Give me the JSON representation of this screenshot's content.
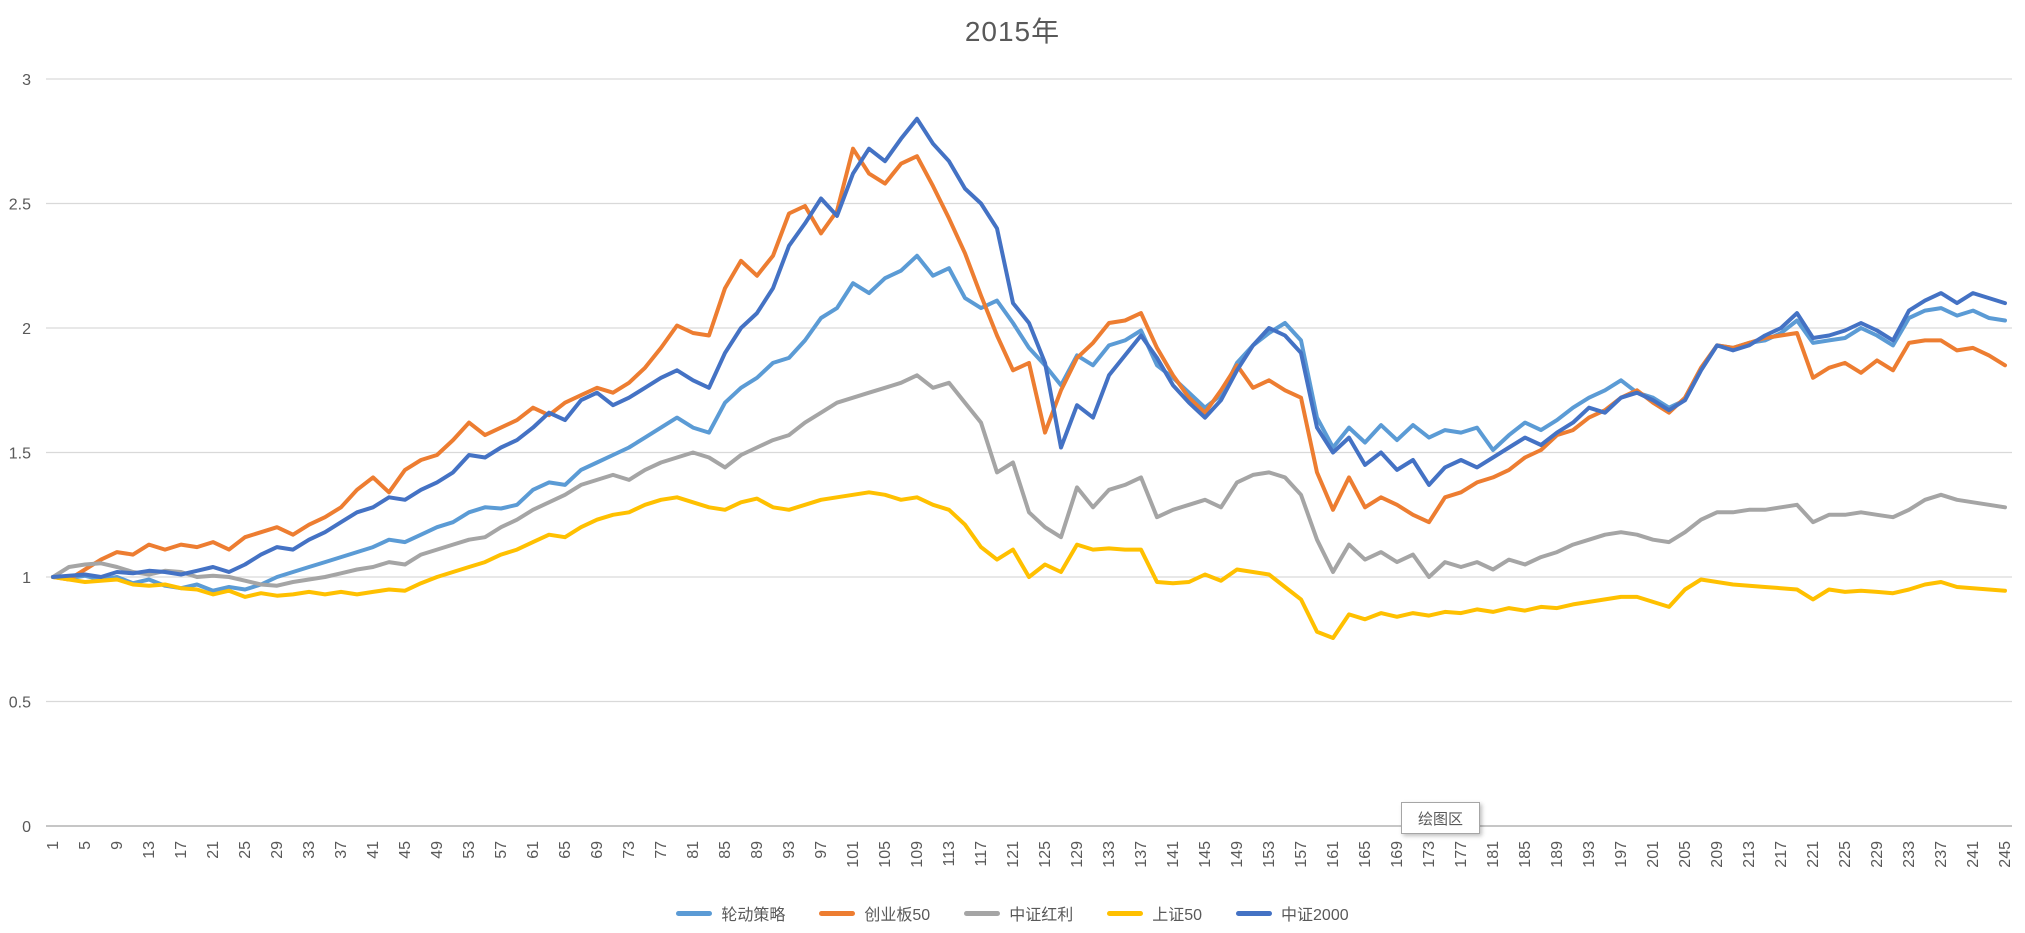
{
  "title": "2015年",
  "tooltip": {
    "label": "绘图区"
  },
  "colors": {
    "grid": "#d9d9d9",
    "axis_line": "#c6c6c6",
    "axis_text": "#595959",
    "title_text": "#595959"
  },
  "legend": [
    {
      "label": "轮动策略",
      "color": "#5B9BD5"
    },
    {
      "label": "创业板50",
      "color": "#ED7D31"
    },
    {
      "label": "中证红利",
      "color": "#A5A5A5"
    },
    {
      "label": "上证50",
      "color": "#FFC000"
    },
    {
      "label": "中证2000",
      "color": "#4472C4"
    }
  ],
  "chart_data": {
    "type": "line",
    "title": "2015年",
    "xlabel": "",
    "ylabel": "",
    "x_description": "trading day index 1-245, sampled every 2 days",
    "x_start_day": 1,
    "x_day_step": 2,
    "x_tick_labels": [
      1,
      5,
      9,
      13,
      17,
      21,
      25,
      29,
      33,
      37,
      41,
      45,
      49,
      53,
      57,
      61,
      65,
      69,
      73,
      77,
      81,
      85,
      89,
      93,
      97,
      101,
      105,
      109,
      113,
      117,
      121,
      125,
      129,
      133,
      137,
      141,
      145,
      149,
      153,
      157,
      161,
      165,
      169,
      173,
      177,
      181,
      185,
      189,
      193,
      197,
      201,
      205,
      209,
      213,
      217,
      221,
      225,
      229,
      233,
      237,
      241,
      245
    ],
    "y_ticks": [
      0,
      0.5,
      1,
      1.5,
      2,
      2.5,
      3
    ],
    "ylim": [
      0,
      3
    ],
    "xlim": [
      1,
      245
    ],
    "grid": "horizontal",
    "legend_position": "bottom",
    "series": [
      {
        "name": "轮动策略",
        "color": "#5B9BD5",
        "values": [
          1.0,
          0.995,
          1.005,
          0.99,
          1.0,
          0.975,
          0.99,
          0.965,
          0.955,
          0.97,
          0.945,
          0.96,
          0.95,
          0.97,
          1.0,
          1.02,
          1.04,
          1.06,
          1.08,
          1.1,
          1.12,
          1.15,
          1.14,
          1.17,
          1.2,
          1.22,
          1.26,
          1.28,
          1.275,
          1.29,
          1.35,
          1.38,
          1.37,
          1.43,
          1.46,
          1.49,
          1.52,
          1.56,
          1.6,
          1.64,
          1.6,
          1.58,
          1.7,
          1.76,
          1.8,
          1.86,
          1.88,
          1.95,
          2.04,
          2.08,
          2.18,
          2.14,
          2.2,
          2.23,
          2.29,
          2.21,
          2.24,
          2.12,
          2.08,
          2.11,
          2.02,
          1.92,
          1.85,
          1.77,
          1.89,
          1.85,
          1.93,
          1.95,
          1.99,
          1.85,
          1.8,
          1.74,
          1.68,
          1.73,
          1.86,
          1.93,
          1.98,
          2.02,
          1.95,
          1.64,
          1.52,
          1.6,
          1.54,
          1.61,
          1.55,
          1.61,
          1.56,
          1.59,
          1.58,
          1.6,
          1.51,
          1.57,
          1.62,
          1.59,
          1.63,
          1.68,
          1.72,
          1.75,
          1.79,
          1.74,
          1.72,
          1.68,
          1.71,
          1.83,
          1.93,
          1.92,
          1.94,
          1.95,
          1.98,
          2.03,
          1.94,
          1.95,
          1.96,
          2.0,
          1.97,
          1.93,
          2.04,
          2.07,
          2.08,
          2.05,
          2.07,
          2.04,
          2.03
        ]
      },
      {
        "name": "创业板50",
        "color": "#ED7D31",
        "values": [
          1.0,
          0.99,
          1.03,
          1.07,
          1.1,
          1.09,
          1.13,
          1.11,
          1.13,
          1.12,
          1.14,
          1.11,
          1.16,
          1.18,
          1.2,
          1.17,
          1.21,
          1.24,
          1.28,
          1.35,
          1.4,
          1.34,
          1.43,
          1.47,
          1.49,
          1.55,
          1.62,
          1.57,
          1.6,
          1.63,
          1.68,
          1.65,
          1.7,
          1.73,
          1.76,
          1.74,
          1.78,
          1.84,
          1.92,
          2.01,
          1.98,
          1.97,
          2.16,
          2.27,
          2.21,
          2.29,
          2.46,
          2.49,
          2.38,
          2.47,
          2.72,
          2.62,
          2.58,
          2.66,
          2.69,
          2.57,
          2.44,
          2.3,
          2.13,
          1.97,
          1.83,
          1.86,
          1.58,
          1.75,
          1.88,
          1.94,
          2.02,
          2.03,
          2.06,
          1.92,
          1.81,
          1.72,
          1.66,
          1.75,
          1.85,
          1.76,
          1.79,
          1.75,
          1.72,
          1.42,
          1.27,
          1.4,
          1.28,
          1.32,
          1.29,
          1.25,
          1.22,
          1.32,
          1.34,
          1.38,
          1.4,
          1.43,
          1.48,
          1.51,
          1.57,
          1.59,
          1.64,
          1.67,
          1.72,
          1.75,
          1.7,
          1.66,
          1.72,
          1.84,
          1.93,
          1.92,
          1.94,
          1.96,
          1.97,
          1.98,
          1.8,
          1.84,
          1.86,
          1.82,
          1.87,
          1.83,
          1.94,
          1.95,
          1.95,
          1.91,
          1.92,
          1.89,
          1.85
        ]
      },
      {
        "name": "中证红利",
        "color": "#A5A5A5",
        "values": [
          1.0,
          1.04,
          1.05,
          1.055,
          1.04,
          1.02,
          1.01,
          1.025,
          1.02,
          1.0,
          1.005,
          1.0,
          0.985,
          0.97,
          0.965,
          0.98,
          0.99,
          1.0,
          1.015,
          1.03,
          1.04,
          1.06,
          1.05,
          1.09,
          1.11,
          1.13,
          1.15,
          1.16,
          1.2,
          1.23,
          1.27,
          1.3,
          1.33,
          1.37,
          1.39,
          1.41,
          1.39,
          1.43,
          1.46,
          1.48,
          1.5,
          1.48,
          1.44,
          1.49,
          1.52,
          1.55,
          1.57,
          1.62,
          1.66,
          1.7,
          1.72,
          1.74,
          1.76,
          1.78,
          1.81,
          1.76,
          1.78,
          1.7,
          1.62,
          1.42,
          1.46,
          1.26,
          1.2,
          1.16,
          1.36,
          1.28,
          1.35,
          1.37,
          1.4,
          1.24,
          1.27,
          1.29,
          1.31,
          1.28,
          1.38,
          1.41,
          1.42,
          1.4,
          1.33,
          1.15,
          1.02,
          1.13,
          1.07,
          1.1,
          1.06,
          1.09,
          1.0,
          1.06,
          1.04,
          1.06,
          1.03,
          1.07,
          1.05,
          1.08,
          1.1,
          1.13,
          1.15,
          1.17,
          1.18,
          1.17,
          1.15,
          1.14,
          1.18,
          1.23,
          1.26,
          1.26,
          1.27,
          1.27,
          1.28,
          1.29,
          1.22,
          1.25,
          1.25,
          1.26,
          1.25,
          1.24,
          1.27,
          1.31,
          1.33,
          1.31,
          1.3,
          1.29,
          1.28
        ]
      },
      {
        "name": "上证50",
        "color": "#FFC000",
        "values": [
          1.0,
          0.99,
          0.98,
          0.985,
          0.99,
          0.97,
          0.965,
          0.97,
          0.955,
          0.95,
          0.93,
          0.945,
          0.92,
          0.935,
          0.925,
          0.93,
          0.94,
          0.93,
          0.94,
          0.93,
          0.94,
          0.95,
          0.945,
          0.975,
          1.0,
          1.02,
          1.04,
          1.06,
          1.09,
          1.11,
          1.14,
          1.17,
          1.16,
          1.2,
          1.23,
          1.25,
          1.26,
          1.29,
          1.31,
          1.32,
          1.3,
          1.28,
          1.27,
          1.3,
          1.315,
          1.28,
          1.27,
          1.29,
          1.31,
          1.32,
          1.33,
          1.34,
          1.33,
          1.31,
          1.32,
          1.29,
          1.27,
          1.21,
          1.12,
          1.07,
          1.11,
          1.0,
          1.05,
          1.02,
          1.13,
          1.11,
          1.115,
          1.11,
          1.11,
          0.98,
          0.975,
          0.98,
          1.01,
          0.985,
          1.03,
          1.02,
          1.01,
          0.96,
          0.91,
          0.78,
          0.755,
          0.85,
          0.83,
          0.855,
          0.84,
          0.855,
          0.845,
          0.86,
          0.855,
          0.87,
          0.86,
          0.875,
          0.865,
          0.88,
          0.875,
          0.89,
          0.9,
          0.91,
          0.92,
          0.92,
          0.9,
          0.88,
          0.95,
          0.99,
          0.98,
          0.97,
          0.965,
          0.96,
          0.955,
          0.95,
          0.91,
          0.95,
          0.94,
          0.945,
          0.94,
          0.935,
          0.95,
          0.97,
          0.98,
          0.96,
          0.955,
          0.95,
          0.945
        ]
      },
      {
        "name": "中证2000",
        "color": "#4472C4",
        "values": [
          1.0,
          1.005,
          1.01,
          1.0,
          1.02,
          1.015,
          1.025,
          1.02,
          1.01,
          1.025,
          1.04,
          1.02,
          1.05,
          1.09,
          1.12,
          1.11,
          1.15,
          1.18,
          1.22,
          1.26,
          1.28,
          1.32,
          1.31,
          1.35,
          1.38,
          1.42,
          1.49,
          1.48,
          1.52,
          1.55,
          1.6,
          1.66,
          1.63,
          1.71,
          1.74,
          1.69,
          1.72,
          1.76,
          1.8,
          1.83,
          1.79,
          1.76,
          1.9,
          2.0,
          2.06,
          2.16,
          2.33,
          2.42,
          2.52,
          2.45,
          2.62,
          2.72,
          2.67,
          2.76,
          2.84,
          2.74,
          2.67,
          2.56,
          2.5,
          2.4,
          2.1,
          2.02,
          1.86,
          1.52,
          1.69,
          1.64,
          1.81,
          1.89,
          1.97,
          1.88,
          1.77,
          1.7,
          1.64,
          1.71,
          1.83,
          1.93,
          2.0,
          1.97,
          1.9,
          1.6,
          1.5,
          1.56,
          1.45,
          1.5,
          1.43,
          1.47,
          1.37,
          1.44,
          1.47,
          1.44,
          1.48,
          1.52,
          1.56,
          1.53,
          1.58,
          1.62,
          1.68,
          1.66,
          1.72,
          1.74,
          1.71,
          1.67,
          1.71,
          1.83,
          1.93,
          1.91,
          1.93,
          1.97,
          2.0,
          2.06,
          1.96,
          1.97,
          1.99,
          2.02,
          1.99,
          1.95,
          2.07,
          2.11,
          2.14,
          2.1,
          2.14,
          2.12,
          2.1
        ]
      }
    ]
  }
}
